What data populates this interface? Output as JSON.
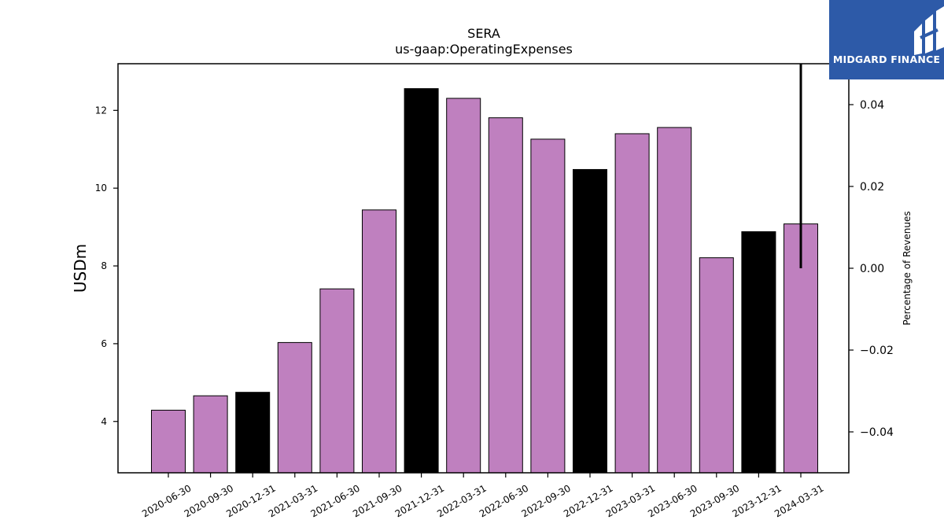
{
  "chart_data": {
    "type": "bar",
    "title": "SERA",
    "subtitle": "us-gaap:OperatingExpenses",
    "ylabel": "USDm",
    "y2label": "Percentage of Revenues",
    "categories": [
      "2020-06-30",
      "2020-09-30",
      "2020-12-31",
      "2021-03-31",
      "2021-06-30",
      "2021-09-30",
      "2021-12-31",
      "2022-03-31",
      "2022-06-30",
      "2022-09-30",
      "2022-12-31",
      "2023-03-31",
      "2023-06-30",
      "2023-09-30",
      "2023-12-31",
      "2024-03-31"
    ],
    "values": [
      4.29,
      4.66,
      4.75,
      6.03,
      7.41,
      9.44,
      12.56,
      12.31,
      11.81,
      11.26,
      10.48,
      11.4,
      11.56,
      8.21,
      8.88,
      9.08
    ],
    "bar_colors": [
      "#bf80bf",
      "#bf80bf",
      "#000000",
      "#bf80bf",
      "#bf80bf",
      "#bf80bf",
      "#000000",
      "#bf80bf",
      "#bf80bf",
      "#bf80bf",
      "#000000",
      "#bf80bf",
      "#bf80bf",
      "#bf80bf",
      "#000000",
      "#bf80bf"
    ],
    "ylim": [
      2.68,
      13.2
    ],
    "yticks": [
      4,
      6,
      8,
      10,
      12
    ],
    "y2lim": [
      -0.05,
      0.05
    ],
    "y2ticks": [
      -0.04,
      -0.02,
      0.0,
      0.02,
      0.04
    ],
    "y2tick_labels": [
      "−0.04",
      "−0.02",
      "0.00",
      "0.02",
      "0.04"
    ],
    "secondary_line": {
      "category": "2024-03-31",
      "from": 0.0,
      "to": 0.05,
      "color": "#000000"
    },
    "grid": false,
    "colors": {
      "highlight": "#000000",
      "default": "#bf80bf"
    }
  },
  "branding": {
    "logo_text": "MIDGARD FINANCE",
    "logo_bg": "#2d5aa8"
  }
}
